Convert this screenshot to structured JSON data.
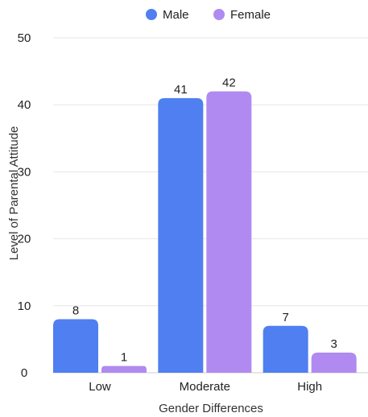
{
  "chart_data": {
    "type": "bar",
    "categories": [
      "Low",
      "Moderate",
      "High"
    ],
    "series": [
      {
        "name": "Male",
        "values": [
          8,
          41,
          7
        ],
        "color": "#4f7ff0"
      },
      {
        "name": "Female",
        "values": [
          1,
          42,
          3
        ],
        "color": "#b08af0"
      }
    ],
    "xlabel": "Gender Differences",
    "ylabel": "Level of Parental Attitude",
    "ylim": [
      0,
      50
    ],
    "yticks": [
      0,
      10,
      20,
      30,
      40,
      50
    ],
    "grid": true,
    "legend_position": "top-center"
  }
}
